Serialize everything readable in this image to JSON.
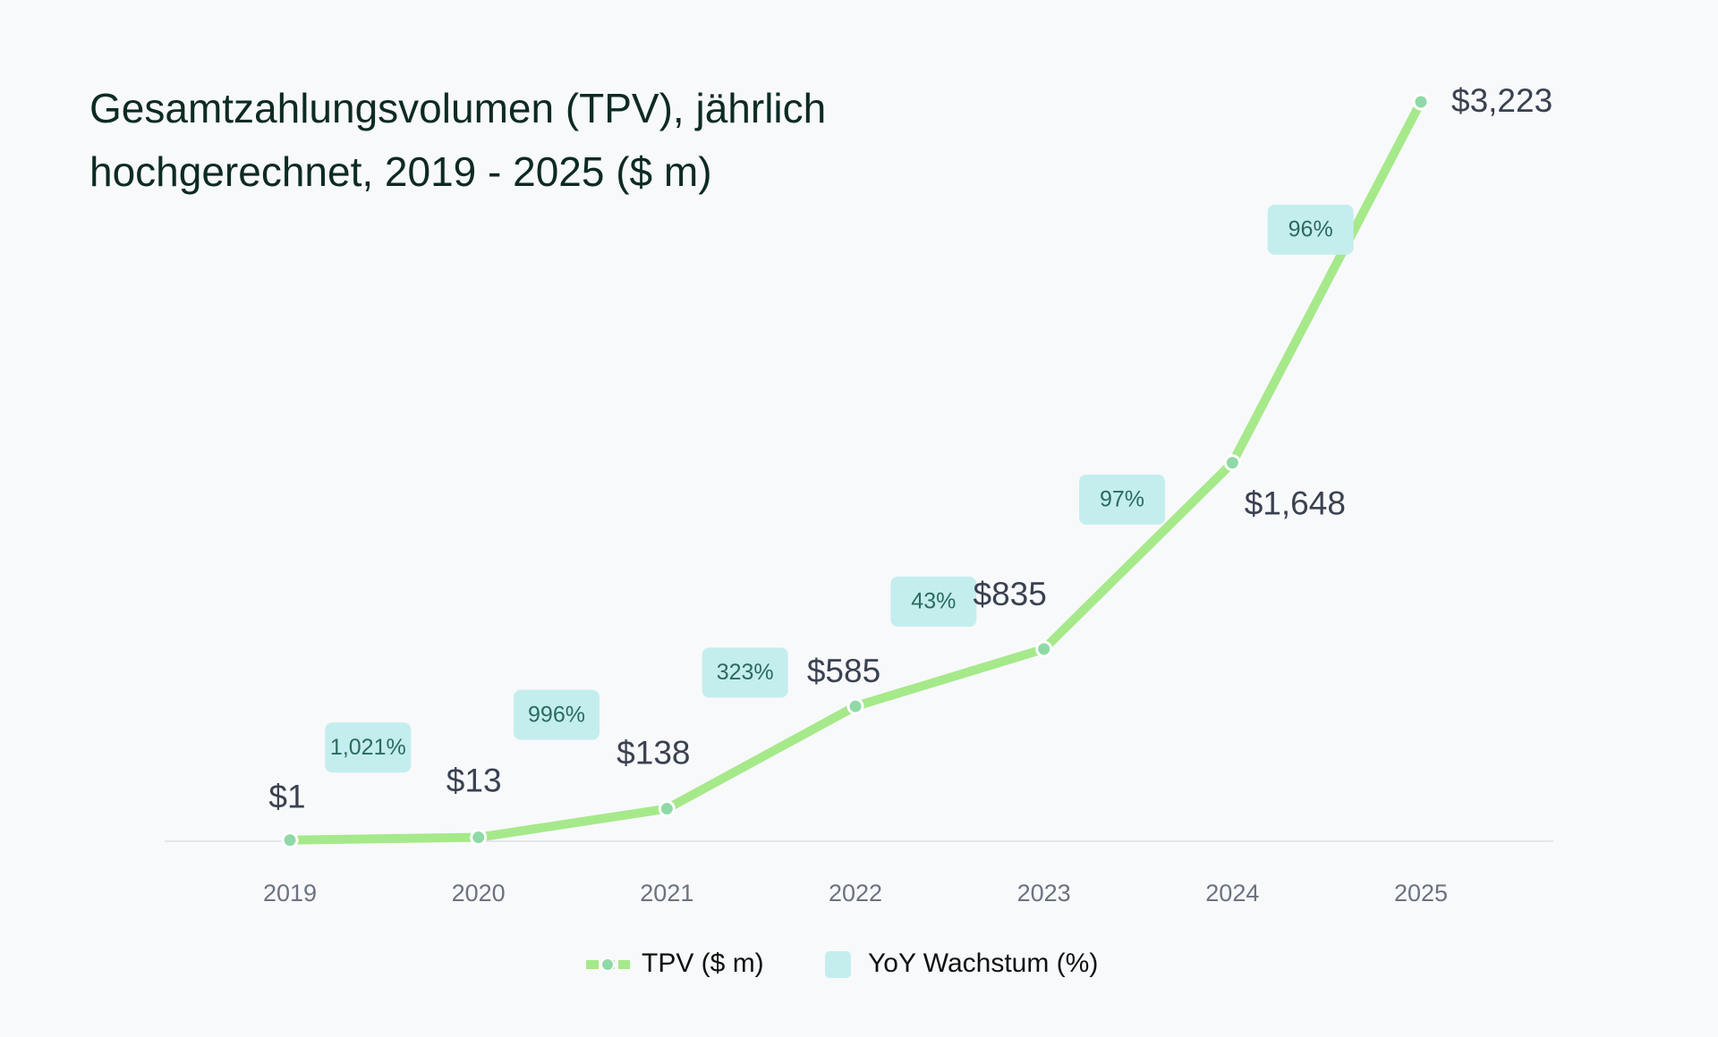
{
  "chart_data": {
    "type": "line",
    "title": [
      "Gesamtzahlungsvolumen (TPV), jährlich",
      "hochgerechnet, 2019 - 2025 ($ m)"
    ],
    "categories": [
      "2019",
      "2020",
      "2021",
      "2022",
      "2023",
      "2024",
      "2025"
    ],
    "series": [
      {
        "name": "TPV ($ m)",
        "color": "#a6e98a",
        "values": [
          1,
          13,
          138,
          585,
          835,
          1648,
          3223
        ],
        "value_labels": [
          "$1",
          "$13",
          "$138",
          "$585",
          "$835",
          "$1,648",
          "$3,223"
        ]
      },
      {
        "name": "YoY Wachstum (%)",
        "color": "#c4eeee",
        "values": [
          null,
          1021,
          996,
          323,
          43,
          97,
          96
        ],
        "value_labels": [
          null,
          "1,021%",
          "996%",
          "323%",
          "43%",
          "97%",
          "96%"
        ]
      }
    ]
  }
}
